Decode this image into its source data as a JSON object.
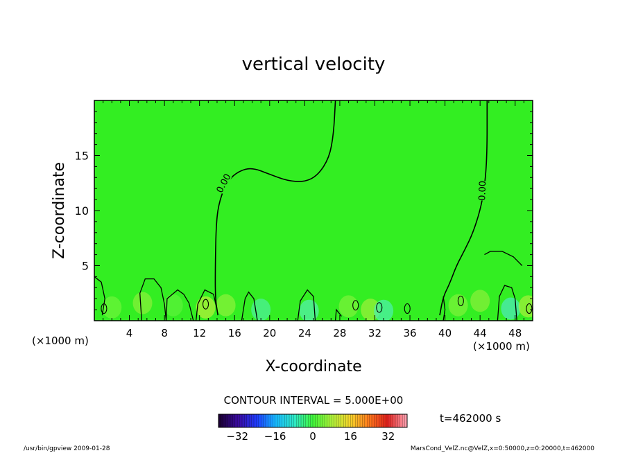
{
  "chart_data": {
    "type": "heatmap",
    "title": "vertical velocity",
    "xlabel": "X-coordinate",
    "ylabel": "Z-coordinate",
    "x_unit_label": "(×1000 m)",
    "x_unit_label_right": "(×1000 m)",
    "xlim": [
      0,
      50
    ],
    "ylim": [
      0,
      20
    ],
    "x_ticks": [
      4,
      8,
      12,
      16,
      20,
      24,
      28,
      32,
      36,
      40,
      44,
      48
    ],
    "y_ticks": [
      5,
      10,
      15
    ],
    "contour_interval_text": "CONTOUR INTERVAL = 5.000E+00",
    "contour_labels": [
      "0.00",
      "0.00"
    ],
    "zero_contours": [
      {
        "name": "west",
        "points": [
          [
            14.1,
            0.5
          ],
          [
            13.8,
            2
          ],
          [
            13.8,
            5
          ],
          [
            13.9,
            9
          ],
          [
            14.3,
            11
          ],
          [
            15.2,
            12.7
          ],
          [
            16.5,
            13.6
          ],
          [
            18,
            13.9
          ],
          [
            20,
            13.3
          ],
          [
            22,
            12.7
          ],
          [
            24,
            12.6
          ],
          [
            25.5,
            13.2
          ],
          [
            26.8,
            14.8
          ],
          [
            27.3,
            17
          ],
          [
            27.5,
            20
          ]
        ]
      },
      {
        "name": "east",
        "points": [
          [
            44.8,
            20
          ],
          [
            44.8,
            15
          ],
          [
            44.5,
            12
          ],
          [
            44,
            10
          ],
          [
            43.2,
            8
          ],
          [
            42.3,
            6.5
          ],
          [
            41.3,
            5
          ],
          [
            40.5,
            3.3
          ],
          [
            39.8,
            2.2
          ],
          [
            39.4,
            0.5
          ]
        ]
      }
    ],
    "time_label": "t=462000 s",
    "colorbar": {
      "range": [
        -40,
        40
      ],
      "ticks": [
        -32,
        -16,
        0,
        16,
        32
      ],
      "colors": [
        "#1a0033",
        "#3a0aa0",
        "#1e3cff",
        "#17b8ff",
        "#2ee8c8",
        "#3ff53a",
        "#aaf03a",
        "#f5d42a",
        "#ff7a1c",
        "#e0201c",
        "#ff9fae"
      ]
    },
    "field_background": "#33ee22",
    "footer_left": "/usr/bin/gpview  2009-01-28",
    "footer_right": "MarsCond_VelZ.nc@VelZ,x=0:50000,z=0:20000,t=462000"
  }
}
